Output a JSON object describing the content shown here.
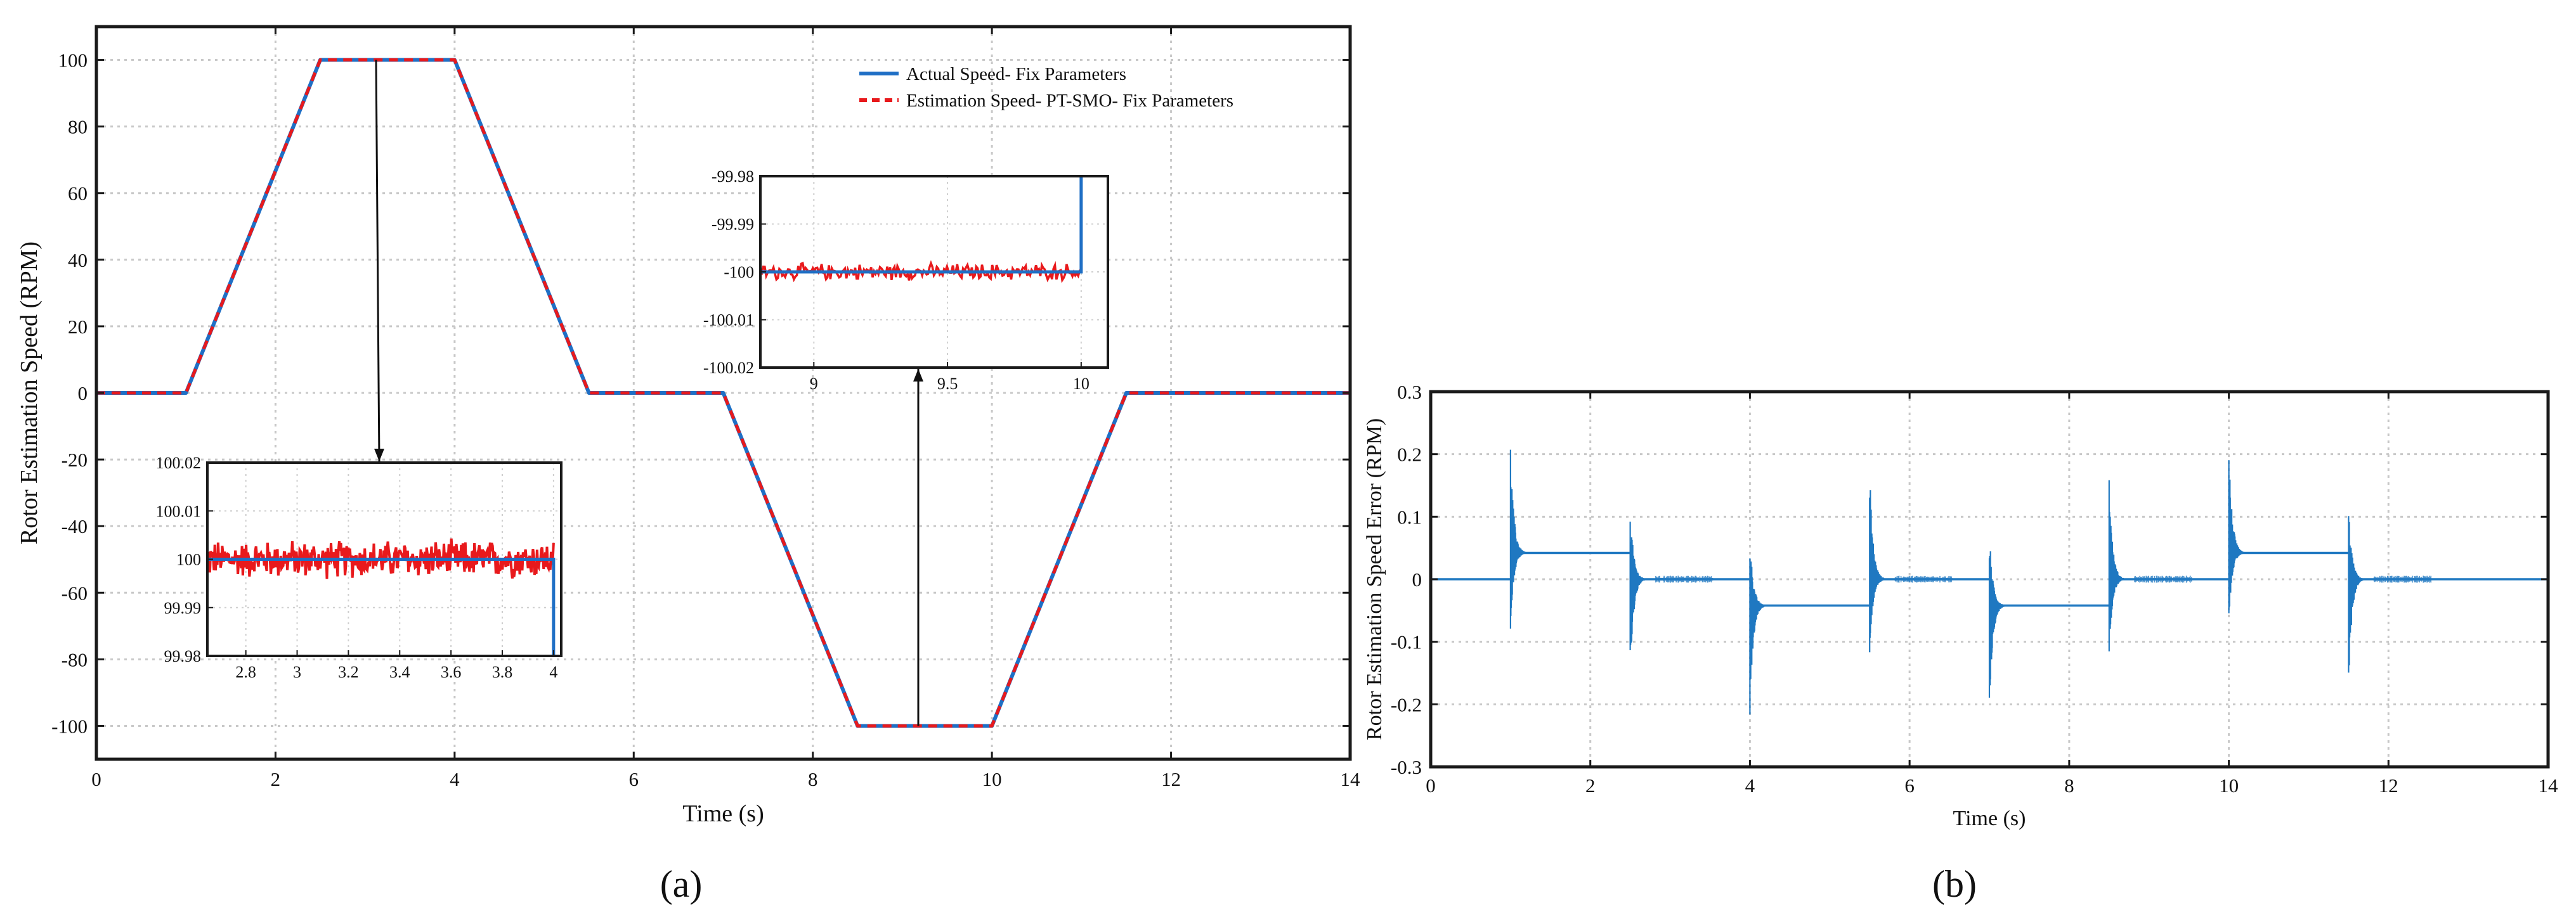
{
  "figure": {
    "panel_a_label": "(a)",
    "panel_b_label": "(b)"
  },
  "chart_data": [
    {
      "id": "a",
      "type": "line",
      "xlabel": "Time (s)",
      "ylabel": "Rotor Estimation Speed (RPM)",
      "xlim": [
        0,
        14
      ],
      "ylim": [
        -110,
        110
      ],
      "xticks": [
        0,
        2,
        4,
        6,
        8,
        10,
        12,
        14
      ],
      "yticks": [
        100,
        80,
        60,
        40,
        20,
        0,
        -20,
        -40,
        -60,
        -80,
        -100
      ],
      "grid": true,
      "legend_position": "top-right",
      "series": [
        {
          "name": "Actual Speed- Fix Parameters",
          "color": "#1f6fc5",
          "style": "solid",
          "x": [
            0,
            1,
            2.5,
            4,
            5.5,
            7,
            8.5,
            10,
            11.5,
            14
          ],
          "y": [
            0,
            0,
            100,
            100,
            0,
            0,
            -100,
            -100,
            0,
            0
          ]
        },
        {
          "name": "Estimation Speed- PT-SMO- Fix Parameters",
          "color": "#e8191c",
          "style": "dashed",
          "x": [
            0,
            1,
            2.5,
            4,
            5.5,
            7,
            8.5,
            10,
            11.5,
            14
          ],
          "y": [
            0,
            0,
            100,
            100,
            0,
            0,
            -100,
            -100,
            0,
            0
          ]
        }
      ],
      "insets": [
        {
          "id": "a-inset-1",
          "xlim": [
            2.65,
            4.03
          ],
          "ylim": [
            99.98,
            100.02
          ],
          "xticks": [
            "2.8",
            "3",
            "3.2",
            "3.4",
            "3.6",
            "3.8",
            "4"
          ],
          "yticks": [
            "100.02",
            "100.01",
            "100",
            "99.99",
            "99.98"
          ],
          "actual_level": 100,
          "estimation_noise_band": [
            99.996,
            100.005
          ],
          "drop_at_x": 4
        },
        {
          "id": "a-inset-2",
          "xlim": [
            8.8,
            10.1
          ],
          "ylim": [
            -100.02,
            -99.98
          ],
          "xticks": [
            "9",
            "9.5",
            "10"
          ],
          "yticks": [
            "-99.98",
            "-99.99",
            "-100",
            "-100.01",
            "-100.02"
          ],
          "actual_level": -100,
          "estimation_noise_band": [
            -100.002,
            -99.998
          ],
          "rise_at_x": 10
        }
      ]
    },
    {
      "id": "b",
      "type": "line",
      "xlabel": "Time (s)",
      "ylabel": "Rotor Estimation Speed Error (RPM)",
      "xlim": [
        0,
        14
      ],
      "ylim": [
        -0.3,
        0.3
      ],
      "xticks": [
        0,
        2,
        4,
        6,
        8,
        10,
        12,
        14
      ],
      "yticks": [
        0.3,
        0.2,
        0.1,
        0,
        -0.1,
        -0.2,
        -0.3
      ],
      "grid": true,
      "series": [
        {
          "color": "#1f78c1",
          "segments": [
            {
              "x0": 0,
              "x1": 1,
              "level": 0
            },
            {
              "x0": 1,
              "x1": 2.5,
              "level": 0.042
            },
            {
              "x0": 2.5,
              "x1": 4,
              "level": 0
            },
            {
              "x0": 4,
              "x1": 5.5,
              "level": -0.042
            },
            {
              "x0": 5.5,
              "x1": 7,
              "level": 0
            },
            {
              "x0": 7,
              "x1": 8.5,
              "level": -0.042
            },
            {
              "x0": 8.5,
              "x1": 10,
              "level": 0
            },
            {
              "x0": 10,
              "x1": 11.5,
              "level": 0.042
            },
            {
              "x0": 11.5,
              "x1": 14,
              "level": 0
            }
          ],
          "spikes": [
            {
              "x": 1.0,
              "max": 0.22,
              "min": -0.08
            },
            {
              "x": 2.5,
              "max": 0.12,
              "min": -0.17
            },
            {
              "x": 4.0,
              "max": 0.07,
              "min": -0.22
            },
            {
              "x": 5.5,
              "max": 0.18,
              "min": -0.12
            },
            {
              "x": 7.0,
              "max": 0.08,
              "min": -0.22
            },
            {
              "x": 8.5,
              "max": 0.17,
              "min": -0.12
            },
            {
              "x": 10.0,
              "max": 0.22,
              "min": -0.07
            },
            {
              "x": 11.5,
              "max": 0.12,
              "min": -0.18
            }
          ]
        }
      ]
    }
  ]
}
